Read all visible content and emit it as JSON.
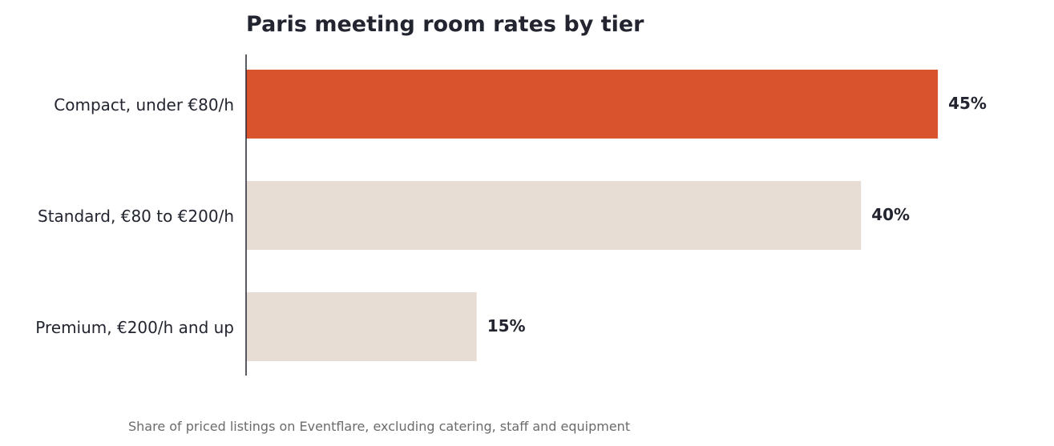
{
  "chart_data": {
    "type": "bar",
    "orientation": "horizontal",
    "title": "Paris meeting room rates by tier",
    "footnote": "Share of priced listings on Eventflare, excluding catering, staff and equipment",
    "categories": [
      "Compact, under €80/h",
      "Standard, €80 to €200/h",
      "Premium, €200/h and up"
    ],
    "values": [
      45,
      40,
      15
    ],
    "value_labels": [
      "45%",
      "40%",
      "15%"
    ],
    "unit": "%",
    "xlim": [
      0,
      45
    ],
    "grid": false,
    "legend": "none",
    "colors": {
      "highlight": "#d9532c",
      "default": "#e7ddd4",
      "text": "#22252f",
      "axis": "#22252f",
      "footnote": "#6b6b6b"
    },
    "highlight_index": 0
  }
}
